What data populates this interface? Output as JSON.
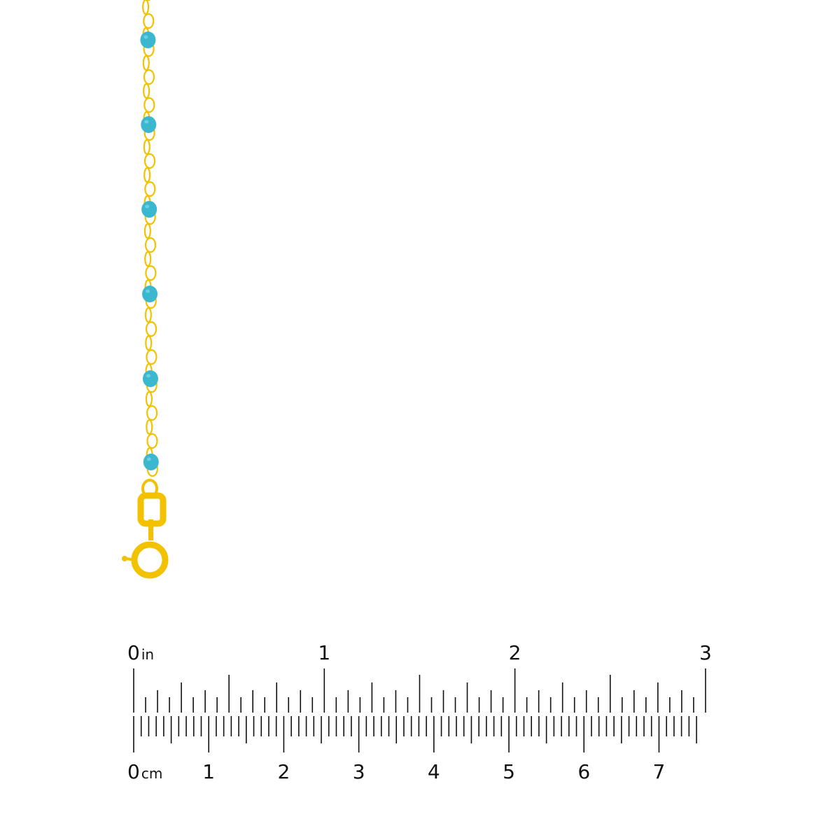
{
  "product": {
    "bead_color": "#3BB8CF",
    "metal_color": "#F2C200",
    "bead_count_visible": 6
  },
  "ruler": {
    "inch_unit": "in",
    "cm_unit": "cm",
    "inch_labels": [
      "0",
      "1",
      "2",
      "3"
    ],
    "cm_labels": [
      "0",
      "1",
      "2",
      "3",
      "4",
      "5",
      "6",
      "7"
    ],
    "inch_max": 3,
    "inch_subdivisions": 16,
    "cm_max": 7.5,
    "cm_subdivisions": 10,
    "tick_color": "#111111"
  }
}
